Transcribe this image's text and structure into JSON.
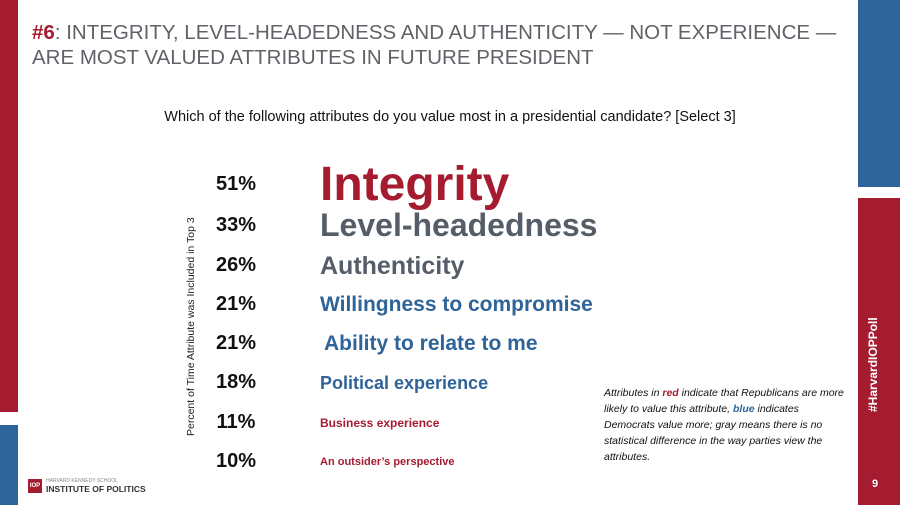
{
  "headline": {
    "number": "#6",
    "text": ": INTEGRITY, LEVEL-HEADEDNESS AND AUTHENTICITY — NOT EXPERIENCE — ARE MOST VALUED ATTRIBUTES IN FUTURE PRESIDENT"
  },
  "question": "Which of the following attributes do you value most in a presidential candidate?  [Select 3]",
  "chart_data": {
    "type": "table",
    "ylabel": "Percent of Time Attribute was Included in Top 3",
    "rows": [
      {
        "label": "Integrity",
        "value": 51,
        "display": "51%",
        "color": "#a51c30"
      },
      {
        "label": "Level-headedness",
        "value": 33,
        "display": "33%",
        "color": "#545d68"
      },
      {
        "label": "Authenticity",
        "value": 26,
        "display": "26%",
        "color": "#545d68"
      },
      {
        "label": "Willingness to compromise",
        "value": 21,
        "display": "21%",
        "color": "#2e6499"
      },
      {
        "label": "Ability to relate to me",
        "value": 21,
        "display": "21%",
        "color": "#2e6499"
      },
      {
        "label": "Political experience",
        "value": 18,
        "display": "18%",
        "color": "#2e6499"
      },
      {
        "label": "Business experience",
        "value": 11,
        "display": "11%",
        "color": "#a51c30"
      },
      {
        "label": "An outsider’s perspective",
        "value": 10,
        "display": "10%",
        "color": "#a51c30"
      }
    ]
  },
  "note": {
    "p1": "Attributes in ",
    "red_word": "red",
    "p2": " indicate that Republicans are more likely to value this attribute, ",
    "blue_word": "blue",
    "p3": " indicates Democrats value more; gray means there is no statistical difference in the way parties view the attributes."
  },
  "footer": {
    "logo_mark": "IOP",
    "logo_small": "HARVARD KENNEDY SCHOOL",
    "logo_text": "INSTITUTE OF POLITICS",
    "hashtag": "#HarvardIOPPoll",
    "page_number": "9"
  },
  "colors": {
    "red": "#a51c30",
    "blue": "#2e6499",
    "gray": "#545d68"
  }
}
